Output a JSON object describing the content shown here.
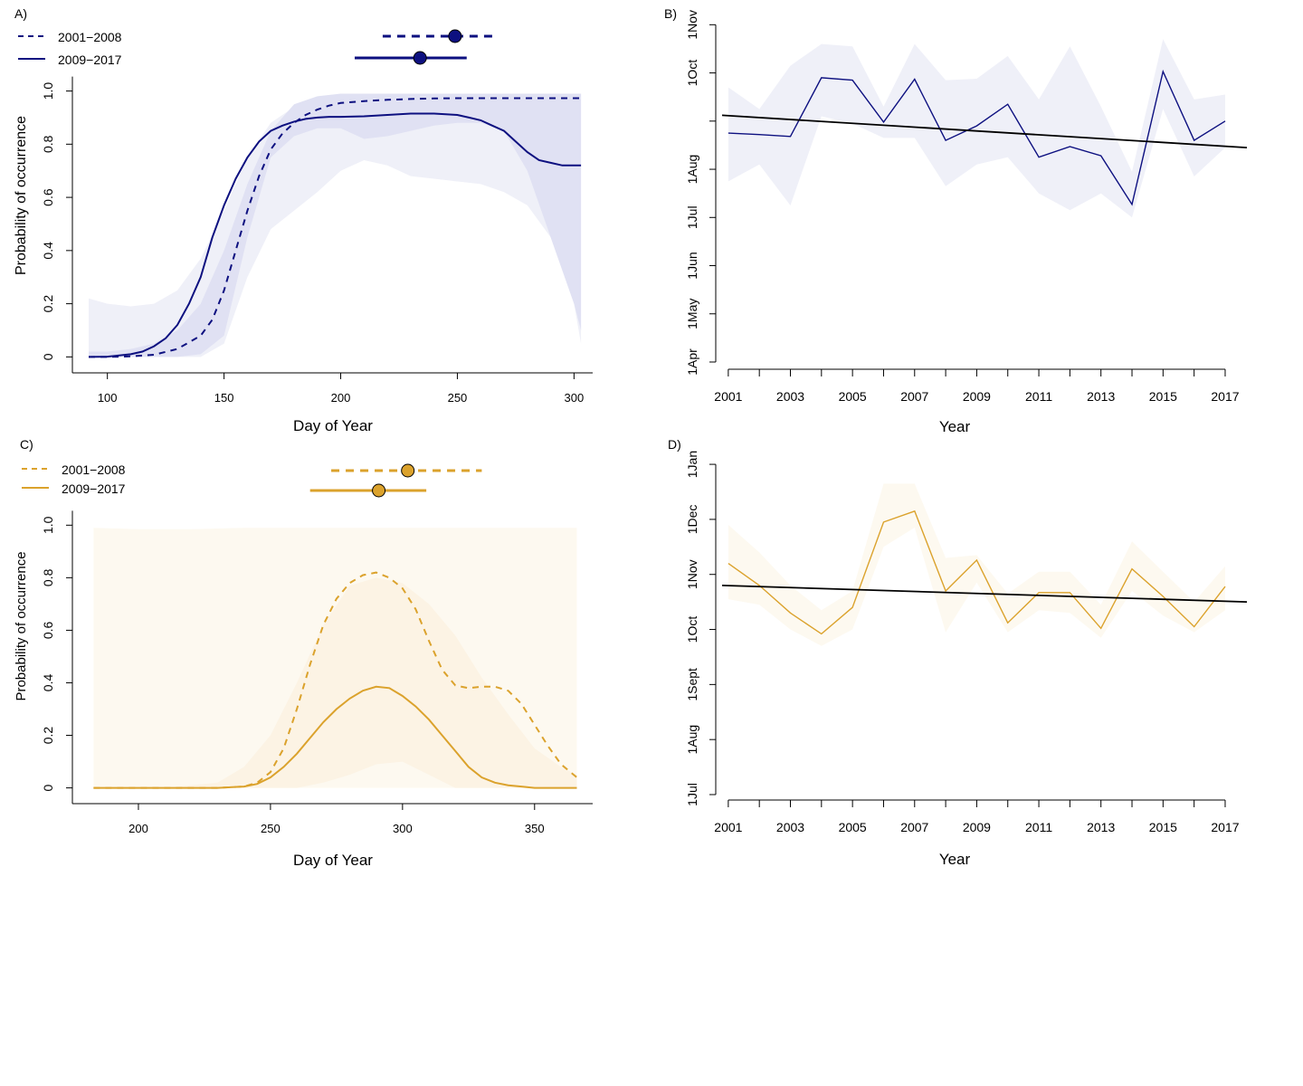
{
  "colors": {
    "blue": "#0d1080",
    "blue_band_outer": "#eff0f8",
    "blue_band_inner": "#e0e1f3",
    "gold": "#dba22c",
    "gold_band_outer": "#fdf9f0",
    "gold_band_inner": "#fcf3e4",
    "trend": "#000000"
  },
  "chart_data": [
    {
      "panel": "A)",
      "type": "line",
      "xlabel": "Day of Year",
      "ylabel": "Probability of occurrence",
      "xlim": [
        85,
        308
      ],
      "ylim": [
        -0.06,
        1.07
      ],
      "x_ticks": [
        100,
        150,
        200,
        250,
        300
      ],
      "y_ticks": [
        0,
        0.2,
        0.4,
        0.6,
        0.8,
        1.0
      ],
      "x_tick_labels": [
        "100",
        "150",
        "200",
        "250",
        "300"
      ],
      "y_tick_labels": [
        "0",
        "0.2",
        "0.4",
        "0.6",
        "0.8",
        "1.0"
      ],
      "legend": [
        {
          "label": "2001−2008",
          "style": "dashed"
        },
        {
          "label": "2009−2017",
          "style": "solid"
        }
      ],
      "peaks": [
        {
          "period": "2001−2008",
          "style": "dashed",
          "center": 249,
          "low": 218,
          "high": 266
        },
        {
          "period": "2009−2017",
          "style": "solid",
          "center": 234,
          "low": 206,
          "high": 254
        }
      ],
      "series": [
        {
          "name": "2001−2008",
          "style": "dashed",
          "x": [
            92,
            100,
            110,
            120,
            130,
            140,
            145,
            150,
            155,
            160,
            165,
            170,
            175,
            180,
            185,
            190,
            195,
            200,
            210,
            220,
            230,
            240,
            250,
            260,
            270,
            280,
            290,
            300,
            303
          ],
          "y": [
            0.0,
            0.0,
            0.002,
            0.008,
            0.03,
            0.08,
            0.14,
            0.25,
            0.4,
            0.55,
            0.68,
            0.78,
            0.84,
            0.88,
            0.91,
            0.93,
            0.945,
            0.955,
            0.962,
            0.967,
            0.97,
            0.972,
            0.973,
            0.973,
            0.973,
            0.973,
            0.973,
            0.973,
            0.973
          ]
        },
        {
          "name": "2009−2017",
          "style": "solid",
          "x": [
            92,
            100,
            110,
            115,
            120,
            125,
            130,
            135,
            140,
            145,
            150,
            155,
            160,
            165,
            170,
            175,
            180,
            185,
            190,
            195,
            200,
            210,
            220,
            230,
            240,
            250,
            255,
            260,
            265,
            270,
            275,
            280,
            285,
            290,
            295,
            300,
            303
          ],
          "y": [
            0.0,
            0.001,
            0.01,
            0.02,
            0.04,
            0.07,
            0.12,
            0.2,
            0.3,
            0.45,
            0.57,
            0.67,
            0.75,
            0.81,
            0.85,
            0.87,
            0.885,
            0.895,
            0.9,
            0.903,
            0.903,
            0.905,
            0.91,
            0.915,
            0.915,
            0.91,
            0.9,
            0.89,
            0.87,
            0.85,
            0.81,
            0.77,
            0.74,
            0.73,
            0.72,
            0.72,
            0.72
          ]
        }
      ],
      "bands": [
        {
          "period": "2001−2008",
          "x": [
            92,
            100,
            110,
            120,
            130,
            140,
            150,
            160,
            170,
            180,
            190,
            200,
            210,
            220,
            230,
            240,
            250,
            260,
            270,
            280,
            290,
            300,
            303
          ],
          "upper": [
            0.22,
            0.2,
            0.19,
            0.2,
            0.25,
            0.37,
            0.55,
            0.75,
            0.88,
            0.94,
            0.97,
            0.98,
            0.99,
            0.99,
            0.99,
            0.99,
            0.99,
            0.99,
            0.99,
            0.99,
            0.99,
            0.99,
            0.99
          ],
          "lower": [
            0.0,
            0.0,
            0.0,
            0.0,
            0.0,
            0.0,
            0.05,
            0.3,
            0.48,
            0.55,
            0.62,
            0.7,
            0.74,
            0.72,
            0.68,
            0.67,
            0.66,
            0.65,
            0.62,
            0.57,
            0.45,
            0.2,
            0.05
          ]
        },
        {
          "period": "2009−2017",
          "x": [
            92,
            100,
            110,
            120,
            130,
            140,
            150,
            160,
            170,
            180,
            190,
            200,
            210,
            220,
            230,
            240,
            250,
            260,
            270,
            280,
            290,
            300,
            303
          ],
          "upper": [
            0.02,
            0.02,
            0.03,
            0.05,
            0.1,
            0.2,
            0.4,
            0.65,
            0.85,
            0.95,
            0.98,
            0.99,
            0.99,
            0.99,
            0.99,
            0.99,
            0.99,
            0.99,
            0.99,
            0.99,
            0.99,
            0.99,
            0.99
          ],
          "lower": [
            0.0,
            0.0,
            0.0,
            0.0,
            0.0,
            0.01,
            0.08,
            0.45,
            0.75,
            0.83,
            0.86,
            0.86,
            0.82,
            0.83,
            0.85,
            0.87,
            0.88,
            0.88,
            0.85,
            0.7,
            0.45,
            0.2,
            0.1
          ]
        }
      ]
    },
    {
      "panel": "B)",
      "type": "line",
      "xlabel": "Year",
      "xlim": [
        2000.8,
        2017.7
      ],
      "ylim": [
        0,
        6.95
      ],
      "x_ticks": [
        2001,
        2002,
        2003,
        2004,
        2005,
        2006,
        2007,
        2008,
        2009,
        2010,
        2011,
        2012,
        2013,
        2014,
        2015,
        2016,
        2017
      ],
      "x_tick_labels": [
        "2001",
        "",
        "2003",
        "",
        "2005",
        "",
        "2007",
        "",
        "2009",
        "",
        "2011",
        "",
        "2013",
        "",
        "2015",
        "",
        "2017"
      ],
      "y_ticks": [
        0,
        1,
        2,
        3,
        4,
        5,
        6,
        7
      ],
      "y_tick_labels": [
        "1Apr",
        "1May",
        "1Jun",
        "1Jul",
        "1Aug",
        "",
        "1Oct",
        "1Nov"
      ],
      "series": [
        {
          "x": [
            2001,
            2002,
            2003,
            2004,
            2005,
            2006,
            2007,
            2008,
            2009,
            2010,
            2011,
            2012,
            2013,
            2014,
            2015,
            2016,
            2017
          ],
          "y": [
            4.75,
            4.72,
            4.68,
            5.9,
            5.85,
            4.98,
            5.87,
            4.6,
            4.9,
            5.35,
            4.25,
            4.47,
            4.28,
            3.27,
            6.03,
            4.6,
            5.0
          ]
        }
      ],
      "band": {
        "x": [
          2001,
          2002,
          2003,
          2004,
          2005,
          2006,
          2007,
          2008,
          2009,
          2010,
          2011,
          2012,
          2013,
          2014,
          2015,
          2016,
          2017
        ],
        "upper": [
          5.7,
          5.25,
          6.15,
          6.6,
          6.55,
          5.3,
          6.6,
          5.85,
          5.88,
          6.35,
          5.45,
          6.55,
          5.3,
          3.95,
          6.7,
          5.45,
          5.55
        ],
        "lower": [
          3.75,
          4.1,
          3.25,
          5.1,
          4.95,
          4.65,
          4.65,
          3.65,
          4.1,
          4.25,
          3.5,
          3.15,
          3.5,
          3.0,
          5.25,
          3.85,
          4.45
        ]
      },
      "trend": {
        "x": [
          2000.8,
          2017.7
        ],
        "y": [
          5.12,
          4.45
        ]
      }
    },
    {
      "panel": "C)",
      "type": "line",
      "xlabel": "Day of Year",
      "ylabel": "Probability of occurrence",
      "xlim": [
        175,
        372
      ],
      "ylim": [
        -0.06,
        1.07
      ],
      "x_ticks": [
        200,
        250,
        300,
        350
      ],
      "y_ticks": [
        0,
        0.2,
        0.4,
        0.6,
        0.8,
        1.0
      ],
      "x_tick_labels": [
        "200",
        "250",
        "300",
        "350"
      ],
      "y_tick_labels": [
        "0",
        "0.2",
        "0.4",
        "0.6",
        "0.8",
        "1.0"
      ],
      "legend": [
        {
          "label": "2001−2008",
          "style": "dashed"
        },
        {
          "label": "2009−2017",
          "style": "solid"
        }
      ],
      "peaks": [
        {
          "period": "2001−2008",
          "style": "dashed",
          "center": 302,
          "low": 273,
          "high": 330
        },
        {
          "period": "2009−2017",
          "style": "solid",
          "center": 291,
          "low": 265,
          "high": 309
        }
      ],
      "series": [
        {
          "name": "2001−2008",
          "style": "dashed",
          "x": [
            183,
            200,
            220,
            230,
            240,
            245,
            250,
            255,
            260,
            265,
            270,
            275,
            280,
            285,
            290,
            295,
            300,
            305,
            310,
            315,
            320,
            325,
            330,
            335,
            340,
            345,
            350,
            355,
            360,
            366
          ],
          "y": [
            0.0,
            0.0,
            0.0,
            0.0,
            0.005,
            0.02,
            0.06,
            0.15,
            0.3,
            0.47,
            0.62,
            0.72,
            0.78,
            0.81,
            0.82,
            0.8,
            0.76,
            0.68,
            0.56,
            0.45,
            0.39,
            0.38,
            0.385,
            0.385,
            0.37,
            0.32,
            0.24,
            0.16,
            0.09,
            0.04
          ]
        },
        {
          "name": "2009−2017",
          "style": "solid",
          "x": [
            183,
            200,
            220,
            230,
            240,
            245,
            250,
            255,
            260,
            265,
            270,
            275,
            280,
            285,
            290,
            295,
            300,
            305,
            310,
            315,
            320,
            325,
            330,
            335,
            340,
            345,
            350,
            355,
            360,
            366
          ],
          "y": [
            0.0,
            0.0,
            0.0,
            0.0,
            0.005,
            0.015,
            0.04,
            0.08,
            0.13,
            0.19,
            0.25,
            0.3,
            0.34,
            0.37,
            0.385,
            0.38,
            0.35,
            0.31,
            0.26,
            0.2,
            0.14,
            0.08,
            0.04,
            0.02,
            0.01,
            0.005,
            0.0,
            0.0,
            0.0,
            0.0
          ]
        }
      ],
      "bands": [
        {
          "period": "2001−2008",
          "x": [
            183,
            200,
            220,
            240,
            260,
            280,
            300,
            320,
            340,
            366
          ],
          "upper": [
            0.99,
            0.985,
            0.985,
            0.99,
            0.99,
            0.99,
            0.99,
            0.99,
            0.99,
            0.99
          ],
          "lower": [
            0.0,
            0.0,
            0.0,
            0.0,
            0.0,
            0.0,
            0.0,
            0.0,
            0.0,
            0.0
          ]
        },
        {
          "period": "2009−2017",
          "x": [
            183,
            210,
            230,
            240,
            250,
            260,
            270,
            280,
            290,
            300,
            310,
            320,
            330,
            340,
            350,
            360,
            366
          ],
          "upper": [
            0.0,
            0.0,
            0.02,
            0.08,
            0.2,
            0.4,
            0.62,
            0.77,
            0.8,
            0.78,
            0.7,
            0.58,
            0.42,
            0.28,
            0.15,
            0.08,
            0.05
          ],
          "lower": [
            0.0,
            0.0,
            0.0,
            0.0,
            0.0,
            0.0,
            0.02,
            0.05,
            0.09,
            0.1,
            0.05,
            0.0,
            0.0,
            0.0,
            0.0,
            0.0,
            0.0
          ]
        }
      ]
    },
    {
      "panel": "D)",
      "type": "line",
      "xlabel": "Year",
      "xlim": [
        2000.8,
        2017.7
      ],
      "ylim": [
        0,
        6.1
      ],
      "x_ticks": [
        2001,
        2002,
        2003,
        2004,
        2005,
        2006,
        2007,
        2008,
        2009,
        2010,
        2011,
        2012,
        2013,
        2014,
        2015,
        2016,
        2017
      ],
      "x_tick_labels": [
        "2001",
        "",
        "2003",
        "",
        "2005",
        "",
        "2007",
        "",
        "2009",
        "",
        "2011",
        "",
        "2013",
        "",
        "2015",
        "",
        "2017"
      ],
      "y_ticks": [
        0,
        1,
        2,
        3,
        4,
        5,
        6
      ],
      "y_tick_labels": [
        "1Jul",
        "1Aug",
        "1Sept",
        "1Oct",
        "1Nov",
        "1Dec",
        "1Jan"
      ],
      "series": [
        {
          "x": [
            2001,
            2002,
            2003,
            2004,
            2005,
            2006,
            2007,
            2008,
            2009,
            2010,
            2011,
            2012,
            2013,
            2014,
            2015,
            2016,
            2017
          ],
          "y": [
            4.2,
            3.8,
            3.3,
            2.92,
            3.4,
            4.95,
            5.15,
            3.7,
            4.26,
            3.12,
            3.67,
            3.67,
            3.02,
            4.1,
            3.6,
            3.05,
            3.78
          ]
        },
        {
          "x": [],
          "y": []
        }
      ],
      "band": {
        "x": [
          2001,
          2002,
          2003,
          2004,
          2005,
          2006,
          2007,
          2008,
          2009,
          2010,
          2011,
          2012,
          2013,
          2014,
          2015,
          2016,
          2017
        ],
        "upper": [
          4.9,
          4.4,
          3.8,
          3.35,
          3.7,
          5.65,
          5.65,
          4.3,
          4.35,
          3.65,
          4.05,
          4.05,
          3.45,
          4.6,
          4.05,
          3.5,
          4.15
        ],
        "lower": [
          3.55,
          3.45,
          3.0,
          2.7,
          3.0,
          4.5,
          4.85,
          2.95,
          3.85,
          2.95,
          3.35,
          3.3,
          2.85,
          3.7,
          3.25,
          2.95,
          3.35
        ]
      },
      "trend": {
        "x": [
          2000.8,
          2017.7
        ],
        "y": [
          3.8,
          3.5
        ]
      }
    }
  ]
}
